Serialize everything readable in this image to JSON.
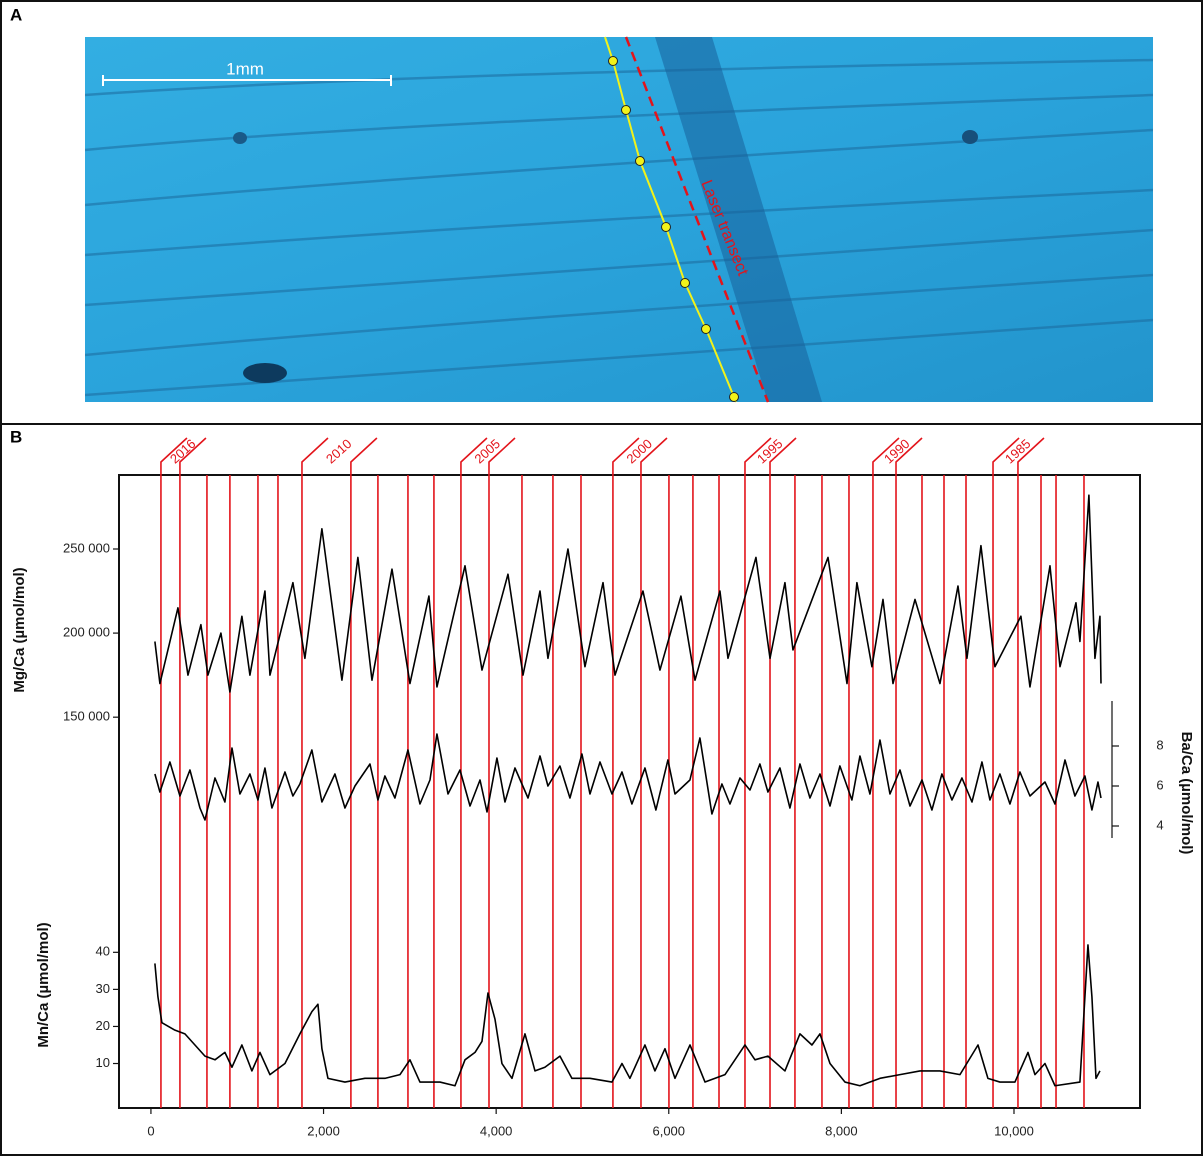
{
  "panel_a": {
    "label": "A",
    "scale_bar": "1mm",
    "transect_label": "Laser transect"
  },
  "panel_b": {
    "label": "B"
  },
  "year_markers": {
    "color": "#e3141b",
    "x": [
      116,
      336,
      649,
      915,
      1240,
      1472,
      1750,
      2317,
      2630,
      2978,
      3279,
      3592,
      3917,
      4299,
      4658,
      4983,
      5353,
      5678,
      6002,
      6280,
      6582,
      6883,
      7173,
      7462,
      7775,
      8088,
      8366,
      8633,
      8934,
      9189,
      9444,
      9757,
      10046,
      10313,
      10487,
      10811
    ],
    "labels": [
      "2016",
      null,
      null,
      null,
      null,
      null,
      "2010",
      null,
      null,
      null,
      null,
      "2005",
      null,
      null,
      null,
      null,
      "2000",
      null,
      null,
      null,
      null,
      "1995",
      null,
      null,
      null,
      null,
      "1990",
      null,
      null,
      null,
      null,
      "1985",
      null,
      null,
      null,
      null
    ]
  },
  "chart_data": [
    {
      "type": "line",
      "ylabel": "Mg/Ca (µmol/mol)",
      "axis_side": "left",
      "color": "#000000",
      "xlim": [
        -370,
        11460
      ],
      "ylim": [
        140000,
        294000
      ],
      "yticks": [
        {
          "value": 150000,
          "label": "150 000"
        },
        {
          "value": 200000,
          "label": "200 000"
        },
        {
          "value": 250000,
          "label": "250 000"
        }
      ],
      "x": [
        46,
        104,
        313,
        429,
        579,
        660,
        811,
        915,
        1054,
        1147,
        1321,
        1379,
        1645,
        1784,
        1981,
        2213,
        2398,
        2561,
        2793,
        3001,
        3221,
        3314,
        3639,
        3836,
        4137,
        4311,
        4508,
        4600,
        4832,
        5029,
        5238,
        5377,
        5701,
        5898,
        6141,
        6304,
        6593,
        6686,
        7010,
        7173,
        7346,
        7439,
        7845,
        8065,
        8180,
        8354,
        8482,
        8598,
        8853,
        9142,
        9351,
        9455,
        9617,
        9779,
        10080,
        10185,
        10417,
        10533,
        10718,
        10764,
        10868,
        10938,
        10996,
        11008
      ],
      "values": [
        195000,
        170000,
        215000,
        175000,
        205000,
        175000,
        200000,
        165000,
        210000,
        175000,
        225000,
        175000,
        230000,
        185000,
        262000,
        172000,
        245000,
        172000,
        238000,
        170000,
        222000,
        168000,
        240000,
        178000,
        235000,
        175000,
        225000,
        185000,
        250000,
        180000,
        230000,
        175000,
        225000,
        178000,
        222000,
        172000,
        225000,
        185000,
        245000,
        185000,
        230000,
        190000,
        245000,
        170000,
        230000,
        180000,
        220000,
        170000,
        220000,
        170000,
        228000,
        185000,
        252000,
        180000,
        210000,
        168000,
        240000,
        180000,
        218000,
        195000,
        282000,
        185000,
        210000,
        170000
      ]
    },
    {
      "type": "line",
      "ylabel": "Ba/Ca (µmol/mol)",
      "axis_side": "right",
      "color": "#000000",
      "xlim": [
        -370,
        11460
      ],
      "ylim": [
        2.8,
        8.6
      ],
      "yticks": [
        4,
        6,
        8
      ],
      "x": [
        46,
        104,
        220,
        336,
        452,
        568,
        626,
        742,
        857,
        939,
        1031,
        1147,
        1240,
        1321,
        1402,
        1553,
        1645,
        1726,
        1865,
        1981,
        2132,
        2248,
        2364,
        2538,
        2630,
        2711,
        2827,
        2978,
        3117,
        3233,
        3314,
        3442,
        3581,
        3697,
        3813,
        3894,
        4009,
        4102,
        4218,
        4369,
        4508,
        4600,
        4739,
        4855,
        4994,
        5087,
        5203,
        5342,
        5458,
        5573,
        5724,
        5851,
        5990,
        6072,
        6245,
        6361,
        6500,
        6616,
        6709,
        6825,
        6941,
        7056,
        7149,
        7288,
        7404,
        7520,
        7636,
        7752,
        7868,
        7983,
        8122,
        8215,
        8331,
        8447,
        8563,
        8679,
        8795,
        8934,
        9049,
        9165,
        9281,
        9397,
        9513,
        9629,
        9721,
        9837,
        9953,
        10069,
        10185,
        10359,
        10475,
        10591,
        10706,
        10822,
        10903,
        10973,
        11008
      ],
      "values": [
        6.6,
        5.7,
        7.2,
        5.5,
        6.8,
        4.9,
        4.3,
        6.4,
        5.2,
        7.9,
        5.6,
        6.6,
        5.3,
        6.9,
        4.9,
        6.7,
        5.5,
        6.1,
        7.8,
        5.2,
        6.6,
        4.9,
        6.0,
        7.1,
        5.3,
        6.5,
        5.4,
        7.8,
        5.1,
        6.3,
        8.6,
        5.6,
        6.8,
        5.0,
        6.3,
        4.7,
        7.4,
        5.2,
        6.9,
        5.4,
        7.5,
        6.0,
        7.0,
        5.4,
        7.6,
        5.6,
        7.2,
        5.6,
        6.7,
        5.1,
        6.9,
        4.8,
        7.3,
        5.6,
        6.3,
        8.4,
        4.6,
        6.1,
        5.1,
        6.4,
        5.8,
        7.1,
        5.7,
        6.9,
        4.9,
        7.1,
        5.4,
        6.6,
        5.0,
        7.0,
        5.3,
        7.5,
        5.6,
        8.3,
        5.6,
        6.8,
        5.0,
        6.3,
        4.8,
        6.6,
        5.3,
        6.4,
        5.2,
        7.2,
        5.3,
        6.6,
        5.1,
        6.7,
        5.5,
        6.2,
        5.1,
        7.3,
        5.5,
        6.5,
        4.8,
        6.2,
        5.4
      ]
    },
    {
      "type": "line",
      "ylabel": "Mn/Ca (µmol/mol)",
      "axis_side": "left",
      "color": "#000000",
      "xlim": [
        -370,
        11460
      ],
      "ylim": [
        -2,
        67.6
      ],
      "yticks": [
        10,
        20,
        30,
        40
      ],
      "xticks": [
        0,
        {
          "value": 2000,
          "label": "2,000"
        },
        {
          "value": 4000,
          "label": "4,000"
        },
        {
          "value": 6000,
          "label": "6,000"
        },
        {
          "value": 8000,
          "label": "8,000"
        },
        {
          "value": 10000,
          "label": "10,000"
        }
      ],
      "x": [
        46,
        81,
        127,
        278,
        394,
        510,
        626,
        742,
        857,
        939,
        1054,
        1170,
        1263,
        1379,
        1553,
        1726,
        1865,
        1935,
        1981,
        2051,
        2248,
        2480,
        2711,
        2885,
        3001,
        3117,
        3349,
        3523,
        3639,
        3755,
        3836,
        3905,
        3986,
        4067,
        4183,
        4334,
        4450,
        4565,
        4739,
        4878,
        5087,
        5342,
        5458,
        5550,
        5724,
        5840,
        5956,
        6072,
        6246,
        6420,
        6651,
        6883,
        6999,
        7149,
        7346,
        7520,
        7659,
        7752,
        7868,
        8041,
        8215,
        8447,
        8679,
        8911,
        9142,
        9374,
        9583,
        9698,
        9837,
        10011,
        10162,
        10243,
        10359,
        10475,
        10764,
        10857,
        10903,
        10950,
        10996
      ],
      "values": [
        37,
        28,
        21,
        19,
        18,
        15,
        12,
        11,
        13,
        9,
        15,
        8,
        13,
        7,
        10,
        18,
        24,
        26,
        14,
        6,
        5,
        6,
        6,
        7,
        11,
        5,
        5,
        4,
        11,
        13,
        16,
        29,
        22,
        10,
        6,
        18,
        8,
        9,
        12,
        6,
        6,
        5,
        10,
        6,
        15,
        8,
        14,
        6,
        15,
        5,
        7,
        15,
        11,
        12,
        8,
        18,
        15,
        18,
        10,
        5,
        4,
        6,
        7,
        8,
        8,
        7,
        15,
        6,
        5,
        5,
        13,
        7,
        10,
        4,
        5,
        42,
        28,
        6,
        8
      ]
    }
  ]
}
